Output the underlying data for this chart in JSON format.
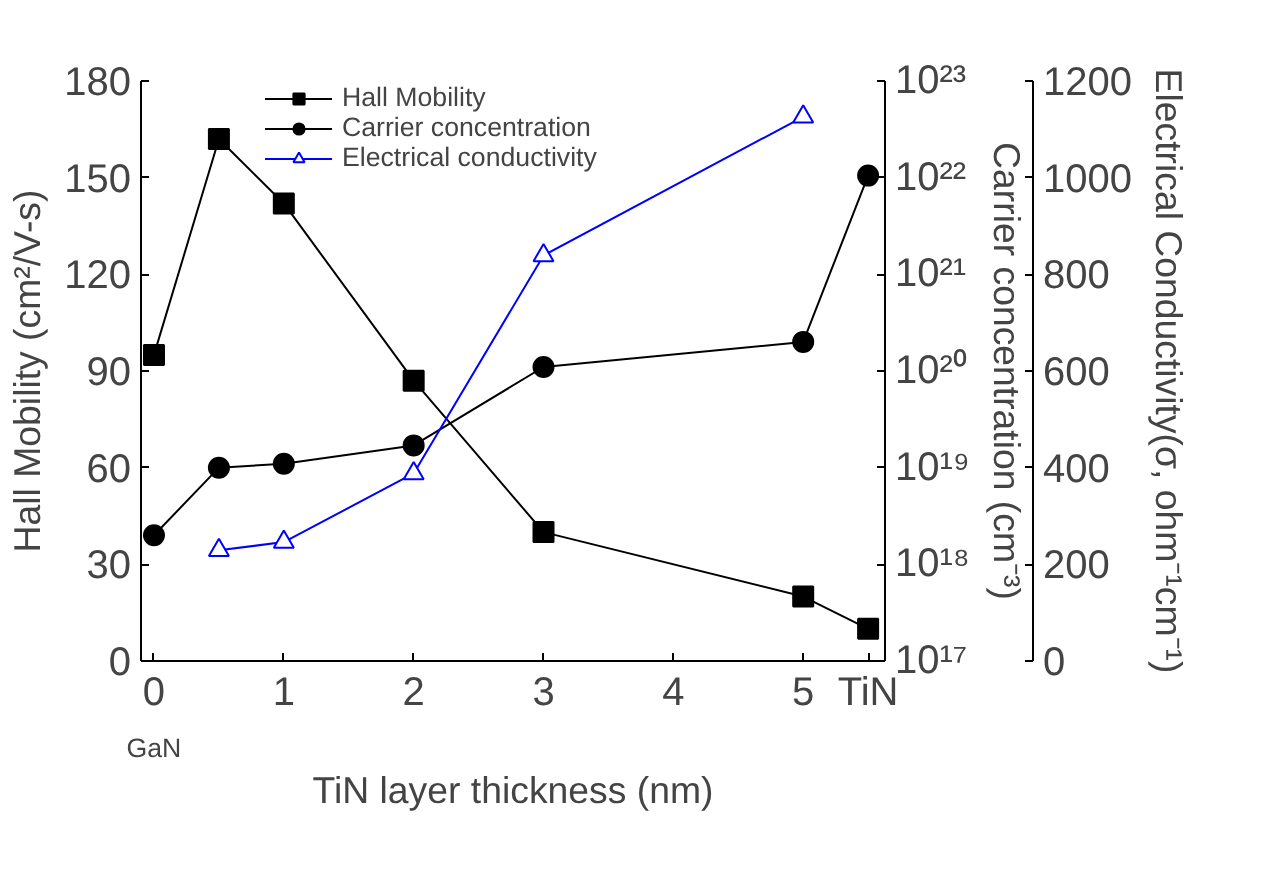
{
  "chart_data": {
    "type": "line",
    "xlabel": "TiN layer thickness (nm)",
    "ylabel": "Hall Mobility (cm²/V-s)",
    "y2label": "Carrier concentration (cm⁻³)",
    "y3label": "Electrical Conductivity(σ, ohm⁻¹cm⁻¹)",
    "x": [
      0,
      0.5,
      1,
      2,
      3,
      5,
      5.5
    ],
    "xlim": [
      -0.1,
      5.63
    ],
    "xticks": [
      0,
      1,
      2,
      3,
      4,
      5,
      {
        "value": 5.5,
        "label": "TiN"
      }
    ],
    "ylim": [
      0,
      180
    ],
    "yticks": [
      0,
      30,
      60,
      90,
      120,
      150,
      180
    ],
    "y2lim": [
      1e+17,
      1e+23
    ],
    "y2ticks": [
      {
        "value": 1e+17,
        "label": "10¹⁷"
      },
      {
        "value": 1e+18,
        "label": "10¹⁸"
      },
      {
        "value": 1e+19,
        "label": "10¹⁹"
      },
      {
        "value": 1e+20,
        "label": "10²⁰"
      },
      {
        "value": 1e+21,
        "label": "10²¹"
      },
      {
        "value": 1e+22,
        "label": "10²²"
      },
      {
        "value": 1e+23,
        "label": "10²³"
      }
    ],
    "y3lim": [
      0,
      1200
    ],
    "y3ticks": [
      0,
      200,
      400,
      600,
      800,
      1000,
      1200
    ],
    "log": "y2",
    "grid": false,
    "legend": "top",
    "line_style": "solid",
    "annotations": [
      "GaN"
    ],
    "series": [
      {
        "name": "Hall Mobility",
        "color": "#000000",
        "marker": "square",
        "values": [
          95,
          162,
          142,
          87,
          40,
          20,
          10
        ]
      },
      {
        "name": "Carrier concentration",
        "color": "#000000",
        "marker": "circle",
        "axis": "y2",
        "values": [
          2e+18,
          1e+19,
          1.1e+19,
          1.7e+19,
          1.1e+20,
          2e+20,
          1.05e+22
        ]
      },
      {
        "name": "Electrical conductivity",
        "color": "#0000ff",
        "marker": "triangle",
        "axis": "y3",
        "values": [
          null,
          229,
          246,
          388,
          839,
          1126,
          null
        ]
      }
    ]
  }
}
